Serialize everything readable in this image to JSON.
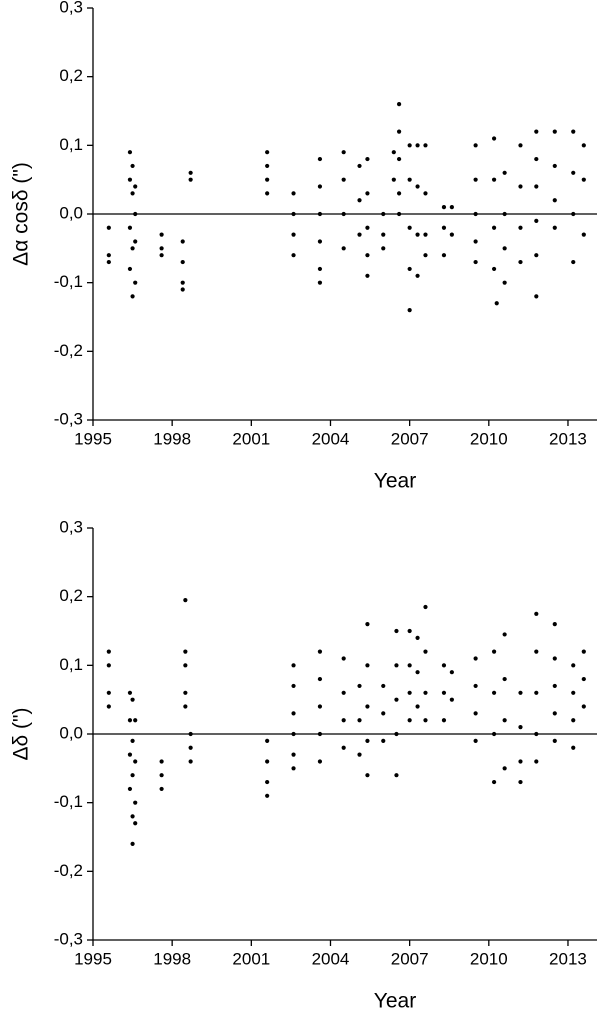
{
  "chart_data": [
    {
      "type": "scatter",
      "x_label": "Year",
      "y_label": "Δα cosδ (\")",
      "color": "#000000",
      "hline": 0,
      "xlim": [
        1995,
        2014.1
      ],
      "xticks": [
        1995,
        1998,
        2001,
        2004,
        2007,
        2010,
        2013
      ],
      "ylim": [
        -0.3,
        0.3
      ],
      "yticks": [
        {
          "value": -0.3,
          "label": "-0,3"
        },
        {
          "value": -0.2,
          "label": "-0,2"
        },
        {
          "value": -0.1,
          "label": "-0,1"
        },
        {
          "value": 0,
          "label": "0,0"
        },
        {
          "value": 0.1,
          "label": "0,1"
        },
        {
          "value": 0.2,
          "label": "0,2"
        },
        {
          "value": 0.3,
          "label": "0,3"
        }
      ],
      "x": [
        1995.6,
        1995.6,
        1995.6,
        1996.4,
        1996.4,
        1996.4,
        1996.4,
        1996.5,
        1996.5,
        1996.5,
        1996.5,
        1996.6,
        1996.6,
        1996.6,
        1996.6,
        1997.6,
        1997.6,
        1997.6,
        1998.4,
        1998.4,
        1998.4,
        1998.4,
        1998.7,
        1998.7,
        2001.6,
        2001.6,
        2001.6,
        2001.6,
        2002.6,
        2002.6,
        2002.6,
        2002.6,
        2003.6,
        2003.6,
        2003.6,
        2003.6,
        2003.6,
        2003.6,
        2004.5,
        2004.5,
        2004.5,
        2004.5,
        2005.1,
        2005.1,
        2005.1,
        2005.4,
        2005.4,
        2005.4,
        2005.4,
        2005.4,
        2006.0,
        2006.0,
        2006.0,
        2006.4,
        2006.4,
        2006.6,
        2006.6,
        2006.6,
        2006.6,
        2006.6,
        2007.0,
        2007.0,
        2007.0,
        2007.0,
        2007.0,
        2007.3,
        2007.3,
        2007.3,
        2007.3,
        2007.6,
        2007.6,
        2007.6,
        2007.6,
        2008.3,
        2008.3,
        2008.3,
        2008.6,
        2008.6,
        2009.5,
        2009.5,
        2009.5,
        2009.5,
        2009.5,
        2010.2,
        2010.2,
        2010.2,
        2010.2,
        2010.3,
        2010.6,
        2010.6,
        2010.6,
        2010.6,
        2011.2,
        2011.2,
        2011.2,
        2011.2,
        2011.8,
        2011.8,
        2011.8,
        2011.8,
        2011.8,
        2011.8,
        2012.5,
        2012.5,
        2012.5,
        2012.5,
        2013.2,
        2013.2,
        2013.2,
        2013.2,
        2013.6,
        2013.6,
        2013.6
      ],
      "values": [
        -0.02,
        -0.06,
        -0.07,
        0.09,
        0.05,
        -0.02,
        -0.08,
        0.07,
        0.03,
        -0.05,
        -0.12,
        0.04,
        0.0,
        -0.04,
        -0.1,
        -0.03,
        -0.05,
        -0.06,
        -0.04,
        -0.07,
        -0.1,
        -0.11,
        0.05,
        0.06,
        0.09,
        0.07,
        0.05,
        0.03,
        0.03,
        0.0,
        -0.03,
        -0.06,
        0.08,
        0.04,
        0.0,
        -0.04,
        -0.08,
        -0.1,
        0.09,
        0.05,
        0.0,
        -0.05,
        0.07,
        0.02,
        -0.03,
        0.08,
        0.03,
        -0.02,
        -0.06,
        -0.09,
        0.0,
        -0.03,
        -0.05,
        0.09,
        0.05,
        0.16,
        0.12,
        0.08,
        0.03,
        0.0,
        0.1,
        0.05,
        -0.02,
        -0.08,
        -0.14,
        0.1,
        0.04,
        -0.03,
        -0.09,
        0.1,
        0.03,
        -0.03,
        -0.06,
        0.01,
        -0.02,
        -0.06,
        0.01,
        -0.03,
        0.1,
        0.05,
        0.0,
        -0.04,
        -0.07,
        0.11,
        0.05,
        -0.02,
        -0.08,
        -0.13,
        0.06,
        0.0,
        -0.05,
        -0.1,
        0.1,
        0.04,
        -0.02,
        -0.07,
        0.12,
        0.08,
        0.04,
        -0.01,
        -0.06,
        -0.12,
        0.12,
        0.07,
        0.02,
        -0.02,
        0.12,
        0.06,
        0.0,
        -0.07,
        0.1,
        0.05,
        -0.03
      ]
    },
    {
      "type": "scatter",
      "x_label": "Year",
      "y_label": "Δδ (\")",
      "color": "#000000",
      "hline": 0,
      "xlim": [
        1995,
        2014.1
      ],
      "xticks": [
        1995,
        1998,
        2001,
        2004,
        2007,
        2010,
        2013
      ],
      "ylim": [
        -0.3,
        0.3
      ],
      "yticks": [
        {
          "value": -0.3,
          "label": "-0,3"
        },
        {
          "value": -0.2,
          "label": "-0,2"
        },
        {
          "value": -0.1,
          "label": "-0,1"
        },
        {
          "value": 0,
          "label": "0,0"
        },
        {
          "value": 0.1,
          "label": "0,1"
        },
        {
          "value": 0.2,
          "label": "0,2"
        },
        {
          "value": 0.3,
          "label": "0,3"
        }
      ],
      "x": [
        1995.6,
        1995.6,
        1995.6,
        1995.6,
        1996.4,
        1996.4,
        1996.4,
        1996.4,
        1996.5,
        1996.5,
        1996.5,
        1996.5,
        1996.5,
        1996.6,
        1996.6,
        1996.6,
        1996.6,
        1997.6,
        1997.6,
        1997.6,
        1998.5,
        1998.5,
        1998.5,
        1998.5,
        1998.5,
        1998.7,
        1998.7,
        1998.7,
        2001.6,
        2001.6,
        2001.6,
        2001.6,
        2002.6,
        2002.6,
        2002.6,
        2002.6,
        2002.6,
        2002.6,
        2003.6,
        2003.6,
        2003.6,
        2003.6,
        2003.6,
        2004.5,
        2004.5,
        2004.5,
        2004.5,
        2005.1,
        2005.1,
        2005.1,
        2005.4,
        2005.4,
        2005.4,
        2005.4,
        2005.4,
        2006.0,
        2006.0,
        2006.0,
        2006.5,
        2006.5,
        2006.5,
        2006.5,
        2006.5,
        2007.0,
        2007.0,
        2007.0,
        2007.0,
        2007.3,
        2007.3,
        2007.3,
        2007.6,
        2007.6,
        2007.6,
        2007.6,
        2008.3,
        2008.3,
        2008.3,
        2008.6,
        2008.6,
        2009.5,
        2009.5,
        2009.5,
        2009.5,
        2010.2,
        2010.2,
        2010.2,
        2010.2,
        2010.6,
        2010.6,
        2010.6,
        2010.6,
        2011.2,
        2011.2,
        2011.2,
        2011.2,
        2011.8,
        2011.8,
        2011.8,
        2011.8,
        2011.8,
        2012.5,
        2012.5,
        2012.5,
        2012.5,
        2012.5,
        2013.2,
        2013.2,
        2013.2,
        2013.2,
        2013.6,
        2013.6,
        2013.6
      ],
      "values": [
        0.12,
        0.1,
        0.06,
        0.04,
        0.06,
        0.02,
        -0.03,
        -0.08,
        0.05,
        -0.01,
        -0.06,
        -0.12,
        -0.16,
        0.02,
        -0.04,
        -0.1,
        -0.13,
        -0.04,
        -0.06,
        -0.08,
        0.195,
        0.12,
        0.1,
        0.06,
        0.04,
        0.0,
        -0.02,
        -0.04,
        -0.01,
        -0.04,
        -0.07,
        -0.09,
        0.1,
        0.07,
        0.03,
        0.0,
        -0.03,
        -0.05,
        0.12,
        0.08,
        0.04,
        0.0,
        -0.04,
        0.11,
        0.06,
        0.02,
        -0.02,
        0.07,
        0.02,
        -0.03,
        0.16,
        0.1,
        0.04,
        -0.01,
        -0.06,
        0.07,
        0.03,
        -0.01,
        0.15,
        0.1,
        0.05,
        0.0,
        -0.06,
        0.15,
        0.1,
        0.06,
        0.02,
        0.14,
        0.09,
        0.04,
        0.185,
        0.12,
        0.06,
        0.02,
        0.1,
        0.06,
        0.02,
        0.09,
        0.05,
        0.11,
        0.07,
        0.03,
        -0.01,
        0.12,
        0.06,
        0.0,
        -0.07,
        0.145,
        0.08,
        0.02,
        -0.05,
        0.06,
        0.01,
        -0.04,
        -0.07,
        0.175,
        0.12,
        0.06,
        0.0,
        -0.04,
        0.16,
        0.11,
        0.07,
        0.03,
        -0.01,
        0.1,
        0.06,
        0.02,
        -0.02,
        0.12,
        0.08,
        0.04
      ]
    }
  ]
}
